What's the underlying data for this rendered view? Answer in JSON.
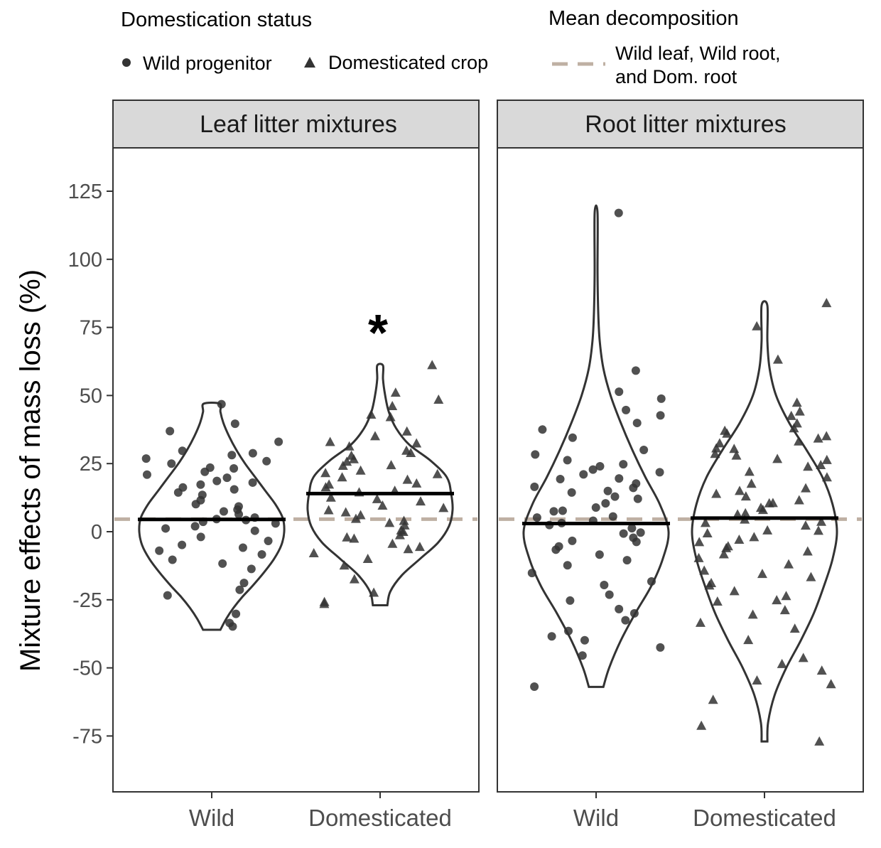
{
  "legend": {
    "shape_title": "Domestication status",
    "shape_items": [
      {
        "label": "Wild progenitor",
        "shape": "circle"
      },
      {
        "label": "Domesticated crop",
        "shape": "triangle"
      }
    ],
    "line_title": "Mean decomposition",
    "line_item": {
      "label_line1": "Wild leaf, Wild root,",
      "label_line2": "and Dom. root",
      "style": "dashed"
    }
  },
  "colors": {
    "points": "#333333",
    "reference_line": "#bfb0a3",
    "strip_fill": "#d9d9d9",
    "panel_border": "#333333"
  },
  "chart_data": {
    "type": "scatter",
    "subtype": "violin-with-jitter",
    "ylabel": "Mixture effects of mass loss (%)",
    "ylim": [
      -95,
      140
    ],
    "yticks": [
      -75,
      -50,
      -25,
      0,
      25,
      50,
      75,
      100,
      125
    ],
    "ytick_labels": [
      "-75",
      "-50",
      "-25",
      "0",
      "25",
      "50",
      "75",
      "100",
      "125"
    ],
    "categories": [
      "Wild",
      "Domesticated"
    ],
    "reference_value": 4.6,
    "grid": false,
    "legend_position": "top",
    "panels": [
      {
        "title": "Leaf litter mixtures",
        "groups": [
          {
            "category": "Wild",
            "shape": "circle",
            "median": 4.5,
            "range": [
              -36,
              47
            ],
            "violin_density": [
              [
                -36,
                0.12
              ],
              [
                -32,
                0.2
              ],
              [
                -28,
                0.3
              ],
              [
                -24,
                0.42
              ],
              [
                -20,
                0.56
              ],
              [
                -15,
                0.72
              ],
              [
                -10,
                0.86
              ],
              [
                -5,
                0.96
              ],
              [
                0,
                1.0
              ],
              [
                5,
                0.98
              ],
              [
                10,
                0.88
              ],
              [
                15,
                0.74
              ],
              [
                20,
                0.6
              ],
              [
                25,
                0.46
              ],
              [
                30,
                0.34
              ],
              [
                35,
                0.24
              ],
              [
                40,
                0.16
              ],
              [
                44,
                0.12
              ],
              [
                47,
                0.11
              ]
            ],
            "points": [
              -35,
              -33,
              -30,
              -23,
              -21,
              -19,
              -14,
              -12,
              -10,
              -8,
              -7,
              -6,
              -5,
              -3,
              -2,
              0,
              1,
              2,
              3,
              4,
              4,
              5,
              5,
              6,
              7,
              8,
              9,
              10,
              12,
              13,
              14,
              15,
              16,
              17,
              18,
              19,
              20,
              21,
              22,
              23,
              24,
              25,
              26,
              27,
              28,
              29,
              30,
              33,
              37,
              40,
              47
            ]
          },
          {
            "category": "Domesticated",
            "shape": "triangle",
            "median": 14,
            "range": [
              -27,
              61
            ],
            "violin_density": [
              [
                -27,
                0.1
              ],
              [
                -22,
                0.14
              ],
              [
                -16,
                0.3
              ],
              [
                -10,
                0.55
              ],
              [
                -4,
                0.8
              ],
              [
                2,
                0.95
              ],
              [
                8,
                1.0
              ],
              [
                14,
                0.98
              ],
              [
                20,
                0.92
              ],
              [
                26,
                0.7
              ],
              [
                32,
                0.4
              ],
              [
                38,
                0.22
              ],
              [
                44,
                0.12
              ],
              [
                50,
                0.07
              ],
              [
                56,
                0.04
              ],
              [
                61,
                0.04
              ]
            ],
            "points": [
              -26,
              -26,
              -22,
              -17,
              -12,
              -10,
              -8,
              -6,
              -5,
              -4,
              -3,
              -2,
              -1,
              0,
              1,
              2,
              3,
              4,
              5,
              6,
              7,
              8,
              9,
              10,
              11,
              12,
              13,
              14,
              15,
              16,
              17,
              18,
              19,
              20,
              21,
              22,
              23,
              24,
              25,
              26,
              27,
              28,
              29,
              30,
              31,
              32,
              33,
              35,
              37,
              42,
              43,
              46,
              49,
              51,
              61
            ]
          }
        ]
      },
      {
        "title": "Root litter mixtures",
        "groups": [
          {
            "category": "Wild",
            "shape": "circle",
            "median": 3,
            "range": [
              -57,
              117
            ],
            "violin_density": [
              [
                -57,
                0.1
              ],
              [
                -50,
                0.18
              ],
              [
                -40,
                0.34
              ],
              [
                -30,
                0.54
              ],
              [
                -20,
                0.76
              ],
              [
                -10,
                0.92
              ],
              [
                0,
                1.0
              ],
              [
                10,
                0.88
              ],
              [
                20,
                0.68
              ],
              [
                30,
                0.5
              ],
              [
                40,
                0.34
              ],
              [
                50,
                0.2
              ],
              [
                60,
                0.1
              ],
              [
                70,
                0.05
              ],
              [
                80,
                0.03
              ],
              [
                95,
                0.02
              ],
              [
                117,
                0.02
              ]
            ],
            "points": [
              -57,
              -45,
              -43,
              -40,
              -38,
              -36,
              -32,
              -30,
              -28,
              -25,
              -23,
              -20,
              -18,
              -15,
              -12,
              -10,
              -8,
              -7,
              -5,
              -4,
              -3,
              -2,
              -1,
              0,
              1,
              2,
              3,
              4,
              5,
              6,
              7,
              8,
              9,
              10,
              12,
              13,
              14,
              15,
              16,
              17,
              18,
              19,
              20,
              21,
              22,
              23,
              24,
              25,
              26,
              28,
              30,
              34,
              38,
              40,
              43,
              45,
              49,
              51,
              59,
              117
            ]
          },
          {
            "category": "Domesticated",
            "shape": "triangle",
            "median": 5,
            "range": [
              -77,
              83
            ],
            "violin_density": [
              [
                -77,
                0.04
              ],
              [
                -70,
                0.05
              ],
              [
                -60,
                0.14
              ],
              [
                -50,
                0.3
              ],
              [
                -40,
                0.5
              ],
              [
                -30,
                0.68
              ],
              [
                -20,
                0.82
              ],
              [
                -10,
                0.94
              ],
              [
                0,
                1.0
              ],
              [
                10,
                0.94
              ],
              [
                20,
                0.8
              ],
              [
                30,
                0.58
              ],
              [
                40,
                0.34
              ],
              [
                50,
                0.16
              ],
              [
                60,
                0.07
              ],
              [
                70,
                0.04
              ],
              [
                83,
                0.04
              ]
            ],
            "points": [
              -77,
              -71,
              -62,
              -56,
              -55,
              -51,
              -48,
              -46,
              -40,
              -36,
              -33,
              -30,
              -29,
              -26,
              -25,
              -24,
              -22,
              -20,
              -19,
              -17,
              -15,
              -14,
              -12,
              -10,
              -8,
              -7,
              -6,
              -5,
              -4,
              -3,
              -2,
              -1,
              0,
              1,
              2,
              3,
              4,
              5,
              6,
              7,
              8,
              9,
              10,
              11,
              12,
              13,
              14,
              15,
              16,
              18,
              20,
              22,
              24,
              25,
              26,
              27,
              28,
              29,
              30,
              31,
              32,
              33,
              34,
              35,
              36,
              37,
              38,
              40,
              43,
              44,
              47,
              63,
              75,
              84
            ]
          }
        ]
      }
    ]
  }
}
